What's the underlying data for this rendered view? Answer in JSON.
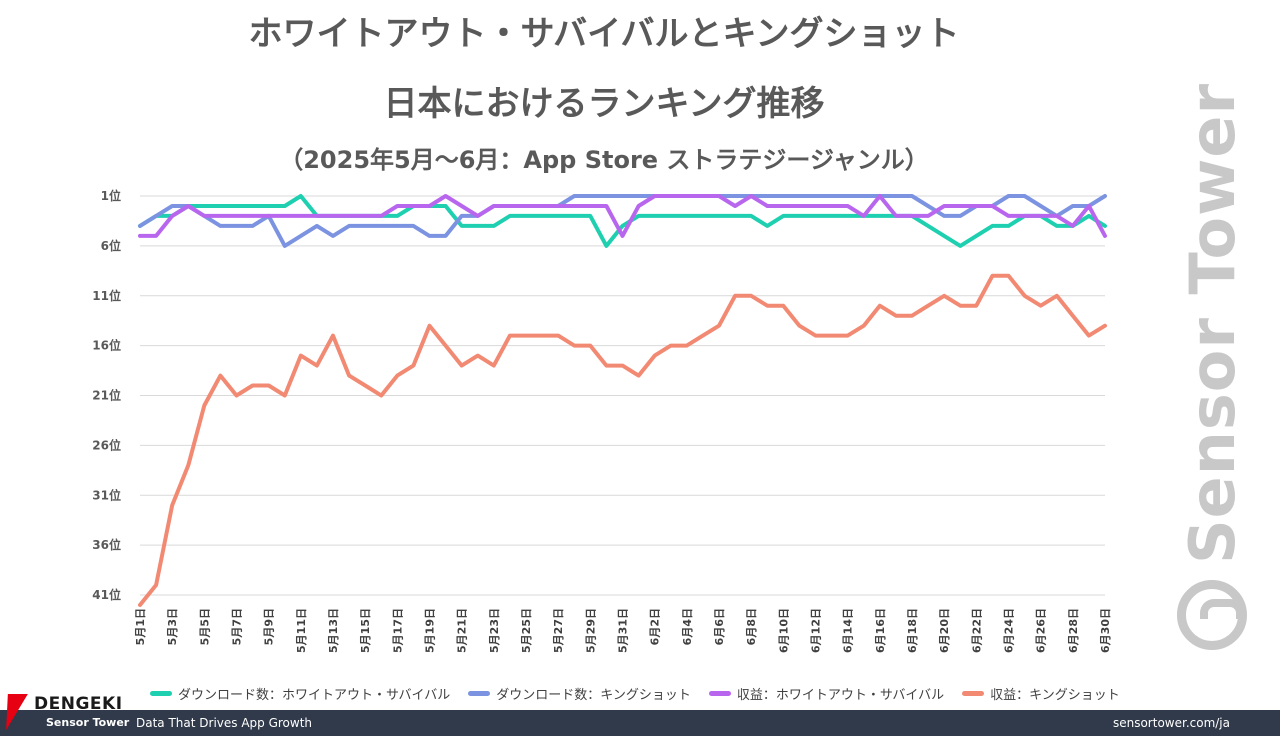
{
  "titles": {
    "line1": "ホワイトアウト・サバイバルとキングショット",
    "line2": "日本におけるランキング推移",
    "line3": "（2025年5月〜6月：App Store ストラテジージャンル）"
  },
  "chart_data": {
    "type": "line",
    "title": "ホワイトアウト・サバイバルとキングショット 日本におけるランキング推移",
    "subtitle": "（2025年5月〜6月：App Store ストラテジージャンル）",
    "xlabel": "",
    "ylabel": "",
    "y_inverted": true,
    "ylim": [
      1,
      41
    ],
    "y_ticks": [
      1,
      6,
      11,
      16,
      21,
      26,
      31,
      36,
      41
    ],
    "y_tick_labels": [
      "1位",
      "6位",
      "11位",
      "16位",
      "21位",
      "26位",
      "31位",
      "36位",
      "41位"
    ],
    "grid": true,
    "legend_position": "bottom",
    "x_tick_labels": [
      "5月1日",
      "5月3日",
      "5月5日",
      "5月7日",
      "5月9日",
      "5月11日",
      "5月13日",
      "5月15日",
      "5月17日",
      "5月19日",
      "5月21日",
      "5月23日",
      "5月25日",
      "5月27日",
      "5月29日",
      "5月31日",
      "6月2日",
      "6月4日",
      "6月6日",
      "6月8日",
      "6月10日",
      "6月12日",
      "6月14日",
      "6月16日",
      "6月18日",
      "6月20日",
      "6月22日",
      "6月24日",
      "6月26日",
      "6月28日",
      "6月30日"
    ],
    "x_count": 61,
    "series": [
      {
        "name": "ダウンロード数：ホワイトアウト・サバイバル",
        "color": "#1ecfb0",
        "values": [
          4,
          3,
          3,
          2,
          2,
          2,
          2,
          2,
          2,
          2,
          1,
          3,
          3,
          3,
          3,
          3,
          3,
          2,
          2,
          2,
          4,
          4,
          4,
          3,
          3,
          3,
          3,
          3,
          3,
          6,
          4,
          3,
          3,
          3,
          3,
          3,
          3,
          3,
          3,
          4,
          3,
          3,
          3,
          3,
          3,
          3,
          3,
          3,
          3,
          4,
          5,
          6,
          5,
          4,
          4,
          3,
          3,
          4,
          4,
          3,
          4
        ]
      },
      {
        "name": "ダウンロード数：キングショット",
        "color": "#7b93e0",
        "values": [
          4,
          3,
          2,
          2,
          3,
          4,
          4,
          4,
          3,
          6,
          5,
          4,
          5,
          4,
          4,
          4,
          4,
          4,
          5,
          5,
          3,
          3,
          2,
          2,
          2,
          2,
          2,
          1,
          1,
          1,
          1,
          1,
          1,
          1,
          1,
          1,
          1,
          1,
          1,
          1,
          1,
          1,
          1,
          1,
          1,
          1,
          1,
          1,
          1,
          2,
          3,
          3,
          2,
          2,
          1,
          1,
          2,
          3,
          2,
          2,
          1
        ]
      },
      {
        "name": "収益：ホワイトアウト・サバイバル",
        "color": "#b966ef",
        "values": [
          5,
          5,
          3,
          2,
          3,
          3,
          3,
          3,
          3,
          3,
          3,
          3,
          3,
          3,
          3,
          3,
          2,
          2,
          2,
          1,
          2,
          3,
          2,
          2,
          2,
          2,
          2,
          2,
          2,
          2,
          5,
          2,
          1,
          1,
          1,
          1,
          1,
          2,
          1,
          2,
          2,
          2,
          2,
          2,
          2,
          3,
          1,
          3,
          3,
          3,
          2,
          2,
          2,
          2,
          3,
          3,
          3,
          3,
          4,
          2,
          5
        ]
      },
      {
        "name": "収益：キングショット",
        "color": "#f28a73",
        "values": [
          42,
          40,
          32,
          28,
          22,
          19,
          21,
          20,
          20,
          21,
          17,
          18,
          15,
          19,
          20,
          21,
          19,
          18,
          14,
          16,
          18,
          17,
          18,
          15,
          15,
          15,
          15,
          16,
          16,
          18,
          18,
          19,
          17,
          16,
          16,
          15,
          14,
          11,
          11,
          12,
          12,
          14,
          15,
          15,
          15,
          14,
          12,
          13,
          13,
          12,
          11,
          12,
          12,
          9,
          9,
          11,
          12,
          11,
          13,
          15,
          14
        ]
      }
    ]
  },
  "footer": {
    "brand": "Sensor Tower",
    "tagline": "Data That Drives App Growth",
    "site": "sensortower.com/ja"
  },
  "watermark": "Sensor Tower",
  "overlay_logo": "DENGEKI"
}
